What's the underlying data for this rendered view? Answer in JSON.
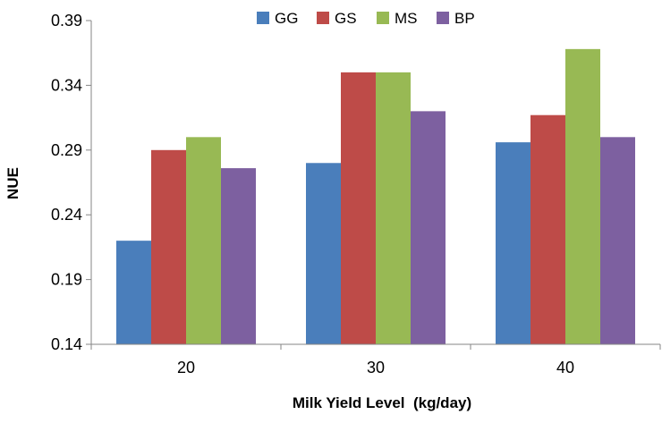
{
  "chart_data": {
    "type": "bar",
    "title": "",
    "xlabel": "Milk Yield Level  (kg/day)",
    "ylabel": "NUE",
    "categories": [
      "20",
      "30",
      "40"
    ],
    "ylim": [
      0.14,
      0.39
    ],
    "yticks": [
      0.14,
      0.19,
      0.24,
      0.29,
      0.34,
      0.39
    ],
    "ytick_labels": [
      "0.14",
      "0.19",
      "0.24",
      "0.29",
      "0.34",
      "0.39"
    ],
    "grid": false,
    "legend_position": "top",
    "series": [
      {
        "name": "GG",
        "color": "#4a7ebb",
        "values": [
          0.22,
          0.28,
          0.296
        ]
      },
      {
        "name": "GS",
        "color": "#be4b48",
        "values": [
          0.29,
          0.35,
          0.317
        ]
      },
      {
        "name": "MS",
        "color": "#98b954",
        "values": [
          0.3,
          0.35,
          0.368
        ]
      },
      {
        "name": "BP",
        "color": "#7d60a0",
        "values": [
          0.276,
          0.32,
          0.3
        ]
      }
    ]
  }
}
